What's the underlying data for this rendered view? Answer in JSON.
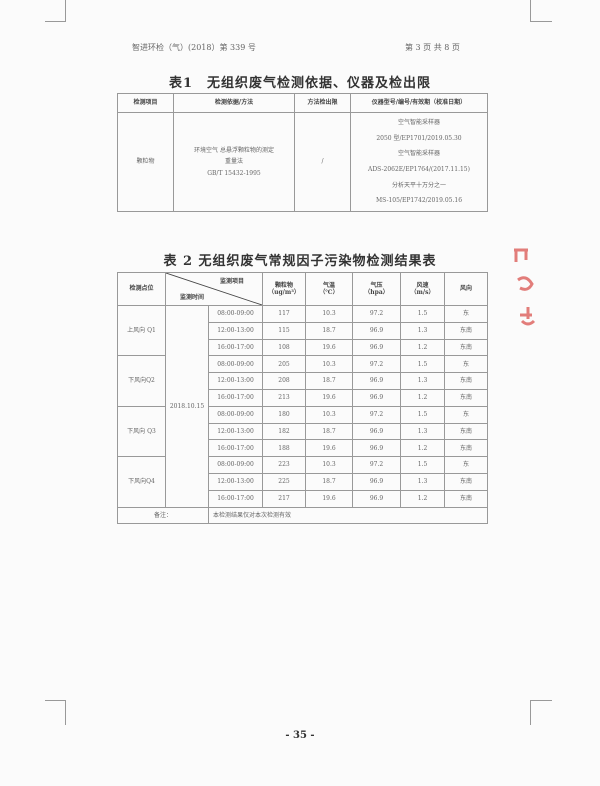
{
  "header": {
    "doc_no": "智进环检（气）(2018）第 339 号",
    "page_info": "第 3 页 共 8 页"
  },
  "table1": {
    "title": "表1　无组织废气检测依据、仪器及检出限",
    "headers": [
      "检测项目",
      "检测依据/方法",
      "方法检出限",
      "仪器型号/编号/有效期（校准日期）"
    ],
    "row": {
      "item": "颗粒物",
      "method": [
        "环境空气 总悬浮颗粒物的测定",
        "重量法",
        "GB/T 15432-1995"
      ],
      "limit": "/",
      "instruments": [
        "空气智能采样器",
        "2050 型/EP1701/2019.05.30",
        "空气智能采样器",
        "ADS-2062E/EP1764/(2017.11.15)",
        "分析天平十万分之一",
        "MS-105/EP1742/2019.05.16"
      ]
    }
  },
  "table2": {
    "title": "表 2 无组织废气常规因子污染物检测结果表",
    "headers": {
      "site": "检测点位",
      "item": "监测项目",
      "time": "监测时间",
      "particle": [
        "颗粒物",
        "（ug/m³）"
      ],
      "temp": [
        "气温",
        "（℃）"
      ],
      "pressure": [
        "气压",
        "（hpa）"
      ],
      "wind_speed": [
        "风速",
        "（m/s）"
      ],
      "wind_dir": "风向"
    },
    "date": "2018.10.15",
    "groups": [
      {
        "site": "上风向 Q1",
        "rows": [
          [
            "08:00-09:00",
            "117",
            "10.3",
            "97.2",
            "1.5",
            "东"
          ],
          [
            "12:00-13:00",
            "115",
            "18.7",
            "96.9",
            "1.3",
            "东南"
          ],
          [
            "16:00-17:00",
            "108",
            "19.6",
            "96.9",
            "1.2",
            "东南"
          ]
        ]
      },
      {
        "site": "下风向Q2",
        "rows": [
          [
            "08:00-09:00",
            "205",
            "10.3",
            "97.2",
            "1.5",
            "东"
          ],
          [
            "12:00-13:00",
            "208",
            "18.7",
            "96.9",
            "1.3",
            "东南"
          ],
          [
            "16:00-17:00",
            "213",
            "19.6",
            "96.9",
            "1.2",
            "东南"
          ]
        ]
      },
      {
        "site": "下风向 Q3",
        "rows": [
          [
            "08:00-09:00",
            "180",
            "10.3",
            "97.2",
            "1.5",
            "东"
          ],
          [
            "12:00-13:00",
            "182",
            "18.7",
            "96.9",
            "1.3",
            "东南"
          ],
          [
            "16:00-17:00",
            "188",
            "19.6",
            "96.9",
            "1.2",
            "东南"
          ]
        ]
      },
      {
        "site": "下风向Q4",
        "rows": [
          [
            "08:00-09:00",
            "223",
            "10.3",
            "97.2",
            "1.5",
            "东"
          ],
          [
            "12:00-13:00",
            "225",
            "18.7",
            "96.9",
            "1.3",
            "东南"
          ],
          [
            "16:00-17:00",
            "217",
            "19.6",
            "96.9",
            "1.2",
            "东南"
          ]
        ]
      }
    ],
    "remark_label": "备注：",
    "remark": "本检测结果仅对本次检测有效"
  },
  "footer": {
    "page_number": "- 35 -"
  },
  "colors": {
    "stamp": "#d9534f"
  }
}
